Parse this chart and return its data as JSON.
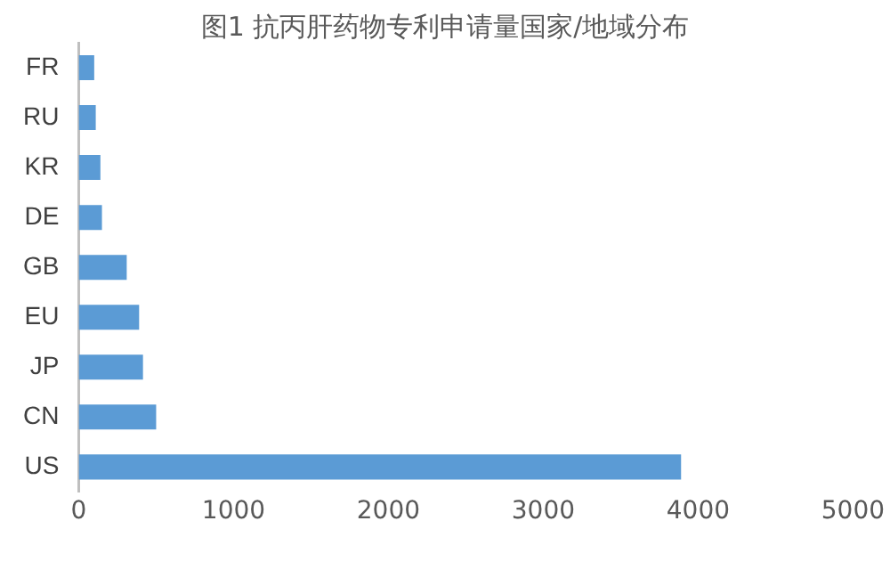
{
  "chart_data": {
    "type": "bar",
    "orientation": "horizontal",
    "title": "图1 抗丙肝药物专利申请量国家/地域分布",
    "categories": [
      "FR",
      "RU",
      "KR",
      "DE",
      "GB",
      "EU",
      "JP",
      "CN",
      "US"
    ],
    "values": [
      100,
      110,
      140,
      150,
      310,
      390,
      415,
      500,
      3890
    ],
    "color": "#5b9bd5",
    "xlim": [
      0,
      5000
    ],
    "xticks": [
      0,
      1000,
      2000,
      3000,
      4000,
      5000
    ],
    "grid": false,
    "legend": false
  }
}
